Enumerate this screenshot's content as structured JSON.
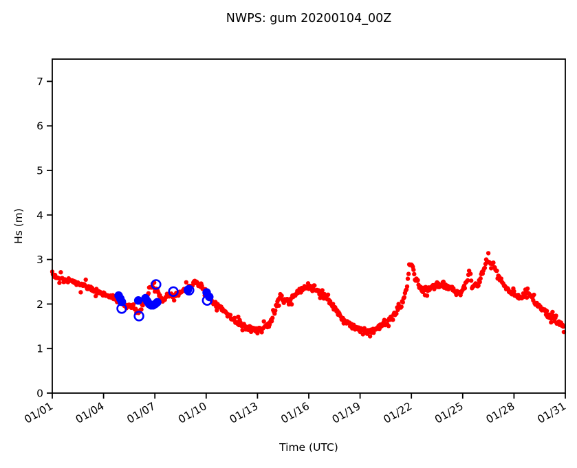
{
  "title": "NWPS: gum 20200104_00Z",
  "chart_data": {
    "type": "scatter",
    "title": "NWPS: gum 20200104_00Z",
    "xlabel": "Time (UTC)",
    "ylabel": "Hs (m)",
    "xlim": [
      1,
      31
    ],
    "ylim": [
      0,
      7.5
    ],
    "grid": false,
    "legend": "none",
    "x_ticks": [
      {
        "day": 1,
        "label": "01/01"
      },
      {
        "day": 4,
        "label": "01/04"
      },
      {
        "day": 7,
        "label": "01/07"
      },
      {
        "day": 10,
        "label": "01/10"
      },
      {
        "day": 13,
        "label": "01/13"
      },
      {
        "day": 16,
        "label": "01/16"
      },
      {
        "day": 19,
        "label": "01/19"
      },
      {
        "day": 22,
        "label": "01/22"
      },
      {
        "day": 25,
        "label": "01/25"
      },
      {
        "day": 28,
        "label": "01/28"
      },
      {
        "day": 31,
        "label": "01/31"
      }
    ],
    "y_ticks": [
      "0",
      "1",
      "2",
      "3",
      "4",
      "5",
      "6",
      "7"
    ],
    "x_tick_rotation_deg": -30,
    "series": [
      {
        "name": "model-hs",
        "style": "dense-dots",
        "color": "#ff0000",
        "marker_radius": 3.2,
        "cadence_hours": 1,
        "noise_seed": 7,
        "noise_base": 0.1,
        "noise_spike_prob": 0.22,
        "noise_spike_amp": 0.26,
        "day_start": 1.0,
        "day_end": 30.92,
        "keyframes": [
          [
            1.0,
            2.65
          ],
          [
            1.4,
            2.6
          ],
          [
            1.8,
            2.52
          ],
          [
            2.2,
            2.48
          ],
          [
            2.6,
            2.42
          ],
          [
            3.0,
            2.38
          ],
          [
            3.4,
            2.32
          ],
          [
            3.8,
            2.25
          ],
          [
            4.2,
            2.2
          ],
          [
            4.6,
            2.12
          ],
          [
            5.0,
            2.05
          ],
          [
            5.4,
            1.95
          ],
          [
            5.8,
            1.92
          ],
          [
            6.05,
            1.8
          ],
          [
            6.3,
            2.0
          ],
          [
            6.6,
            2.25
          ],
          [
            6.85,
            2.45
          ],
          [
            7.1,
            2.3
          ],
          [
            7.45,
            2.08
          ],
          [
            7.8,
            2.22
          ],
          [
            8.1,
            2.18
          ],
          [
            8.5,
            2.25
          ],
          [
            8.9,
            2.35
          ],
          [
            9.3,
            2.5
          ],
          [
            9.7,
            2.42
          ],
          [
            10.0,
            2.3
          ],
          [
            10.4,
            2.05
          ],
          [
            10.8,
            1.92
          ],
          [
            11.2,
            1.78
          ],
          [
            11.6,
            1.65
          ],
          [
            12.0,
            1.55
          ],
          [
            12.4,
            1.47
          ],
          [
            12.9,
            1.42
          ],
          [
            13.4,
            1.45
          ],
          [
            13.8,
            1.6
          ],
          [
            14.1,
            1.95
          ],
          [
            14.35,
            2.2
          ],
          [
            14.6,
            2.05
          ],
          [
            14.9,
            2.12
          ],
          [
            15.3,
            2.25
          ],
          [
            15.7,
            2.35
          ],
          [
            16.1,
            2.4
          ],
          [
            16.5,
            2.32
          ],
          [
            16.9,
            2.18
          ],
          [
            17.3,
            2.0
          ],
          [
            17.7,
            1.8
          ],
          [
            18.1,
            1.62
          ],
          [
            18.5,
            1.5
          ],
          [
            19.0,
            1.42
          ],
          [
            19.5,
            1.36
          ],
          [
            20.0,
            1.44
          ],
          [
            20.5,
            1.58
          ],
          [
            21.0,
            1.75
          ],
          [
            21.4,
            1.95
          ],
          [
            21.7,
            2.3
          ],
          [
            21.95,
            2.95
          ],
          [
            22.1,
            2.8
          ],
          [
            22.35,
            2.5
          ],
          [
            22.6,
            2.3
          ],
          [
            22.85,
            2.3
          ],
          [
            23.1,
            2.38
          ],
          [
            23.5,
            2.42
          ],
          [
            23.9,
            2.4
          ],
          [
            24.3,
            2.38
          ],
          [
            24.6,
            2.25
          ],
          [
            24.9,
            2.2
          ],
          [
            25.15,
            2.45
          ],
          [
            25.35,
            2.65
          ],
          [
            25.6,
            2.4
          ],
          [
            25.9,
            2.45
          ],
          [
            26.2,
            2.75
          ],
          [
            26.5,
            3.0
          ],
          [
            26.75,
            2.9
          ],
          [
            27.0,
            2.7
          ],
          [
            27.35,
            2.45
          ],
          [
            27.7,
            2.3
          ],
          [
            28.1,
            2.18
          ],
          [
            28.5,
            2.12
          ],
          [
            28.8,
            2.3
          ],
          [
            29.1,
            2.1
          ],
          [
            29.5,
            1.92
          ],
          [
            29.9,
            1.8
          ],
          [
            30.3,
            1.68
          ],
          [
            30.6,
            1.6
          ],
          [
            30.92,
            1.5
          ]
        ]
      },
      {
        "name": "observations",
        "style": "filled-dots",
        "color": "#0000ff",
        "marker_radius": 6.2,
        "points": [
          [
            4.88,
            2.19
          ],
          [
            4.98,
            2.12
          ],
          [
            5.07,
            2.05
          ],
          [
            6.03,
            2.08
          ],
          [
            6.45,
            2.13
          ],
          [
            6.56,
            2.06
          ],
          [
            6.67,
            2.0
          ],
          [
            6.78,
            1.97
          ],
          [
            6.9,
            1.97
          ],
          [
            7.02,
            2.0
          ],
          [
            7.14,
            2.04
          ],
          [
            8.93,
            2.32
          ],
          [
            10.03,
            2.26
          ],
          [
            10.18,
            2.16
          ]
        ]
      },
      {
        "name": "collocated-model",
        "style": "open-circles",
        "color": "#0000ff",
        "marker_radius": 6.4,
        "stroke_width": 2.6,
        "points": [
          [
            5.06,
            1.9
          ],
          [
            6.07,
            1.73
          ],
          [
            7.07,
            2.44
          ],
          [
            8.08,
            2.28
          ],
          [
            9.0,
            2.31
          ],
          [
            10.06,
            2.08
          ]
        ]
      }
    ],
    "colors": {
      "model": "#ff0000",
      "observation": "#0000ff",
      "axes": "#000000",
      "background": "#ffffff"
    }
  }
}
